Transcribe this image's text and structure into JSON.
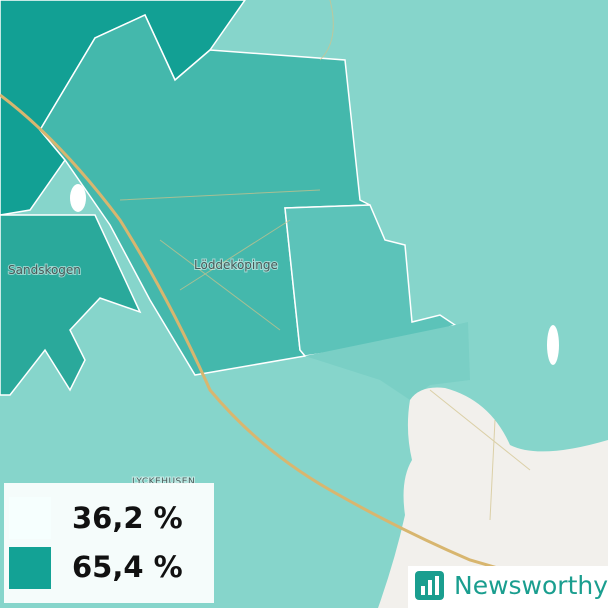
{
  "places": [
    "Sandskogen",
    "Löddeköpinge",
    "LYCKEHUSEN"
  ],
  "legend": [
    "36,2 %",
    "65,4 %"
  ],
  "brand": "Newsworthy"
}
